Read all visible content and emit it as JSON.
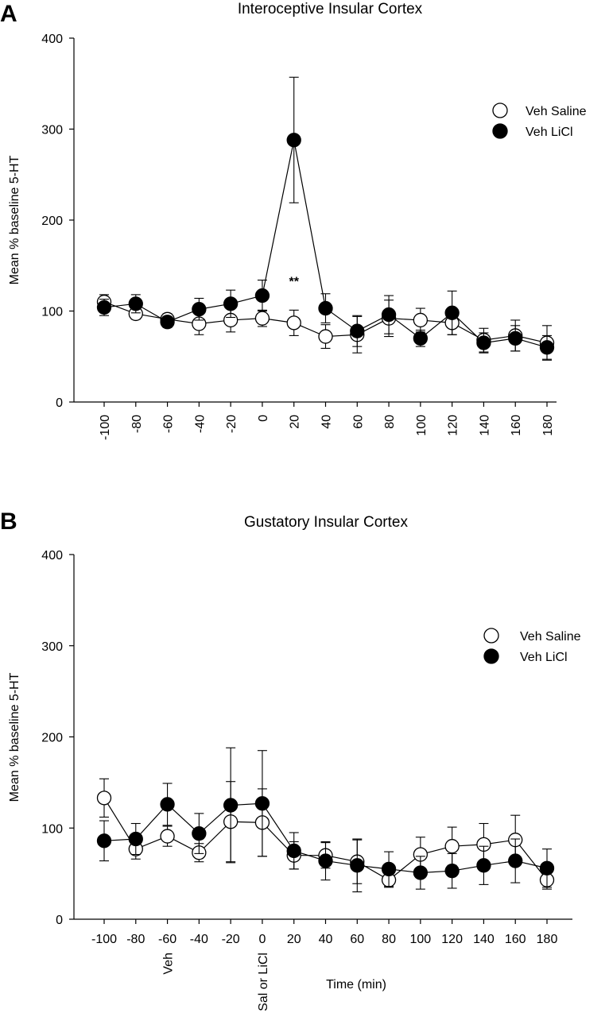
{
  "chart_data": [
    {
      "type": "line",
      "panel": "A",
      "title": "Interoceptive Insular Cortex",
      "ylabel": "Mean % baseline 5-HT",
      "xlabel": "",
      "ylim": [
        0,
        400
      ],
      "yticks": [
        0,
        100,
        200,
        300,
        400
      ],
      "x": [
        -100,
        -80,
        -60,
        -40,
        -20,
        0,
        20,
        40,
        60,
        80,
        100,
        120,
        140,
        160,
        180
      ],
      "x_tick_labels": [
        "-100",
        "-80",
        "-60",
        "-40",
        "-20",
        "0",
        "20",
        "40",
        "60",
        "80",
        "100",
        "120",
        "140",
        "160",
        "180"
      ],
      "x_tick_rotation": "vertical",
      "legend_position": "top-right",
      "series": [
        {
          "name": "Veh Saline",
          "marker": "open-circle",
          "values": [
            110,
            97,
            91,
            86,
            90,
            92,
            87,
            72,
            74,
            92,
            90,
            87,
            68,
            73,
            65
          ],
          "errors": [
            8,
            6,
            6,
            12,
            13,
            9,
            14,
            13,
            20,
            20,
            13,
            13,
            13,
            17,
            19
          ]
        },
        {
          "name": "Veh LiCl",
          "marker": "filled-circle",
          "values": [
            104,
            108,
            88,
            102,
            108,
            117,
            288,
            103,
            78,
            96,
            70,
            98,
            65,
            70,
            60
          ],
          "errors": [
            9,
            10,
            6,
            12,
            15,
            17,
            69,
            16,
            17,
            21,
            9,
            24,
            11,
            14,
            13
          ]
        }
      ],
      "annotations": [
        {
          "text": "**",
          "x": 20,
          "y": 140
        }
      ]
    },
    {
      "type": "line",
      "panel": "B",
      "title": "Gustatory Insular Cortex",
      "ylabel": "Mean % baseline 5-HT",
      "xlabel": "Time (min)",
      "ylim": [
        0,
        400
      ],
      "yticks": [
        0,
        100,
        200,
        300,
        400
      ],
      "x": [
        -100,
        -80,
        -60,
        -40,
        -20,
        0,
        20,
        40,
        60,
        80,
        100,
        120,
        140,
        160,
        180
      ],
      "x_tick_labels": [
        "-100",
        "-80",
        "-60",
        "-40",
        "-20",
        "0",
        "20",
        "40",
        "60",
        "80",
        "100",
        "120",
        "140",
        "160",
        "180"
      ],
      "x_tick_rotation": "horizontal",
      "legend_position": "top-right",
      "series": [
        {
          "name": "Veh Saline",
          "marker": "open-circle",
          "values": [
            133,
            77,
            91,
            73,
            107,
            106,
            70,
            70,
            63,
            43,
            71,
            80,
            82,
            87,
            43
          ],
          "errors": [
            21,
            11,
            11,
            10,
            44,
            37,
            15,
            14,
            24,
            8,
            19,
            21,
            23,
            27,
            10
          ]
        },
        {
          "name": "Veh LiCl",
          "marker": "filled-circle",
          "values": [
            86,
            88,
            126,
            94,
            125,
            127,
            75,
            64,
            59,
            55,
            51,
            53,
            59,
            64,
            56
          ],
          "errors": [
            22,
            17,
            23,
            22,
            63,
            58,
            20,
            21,
            29,
            19,
            18,
            19,
            21,
            24,
            21
          ]
        }
      ],
      "event_labels": [
        {
          "x": -60,
          "text": "Veh"
        },
        {
          "x": 0,
          "text": "Sal or LiCl"
        }
      ]
    }
  ]
}
